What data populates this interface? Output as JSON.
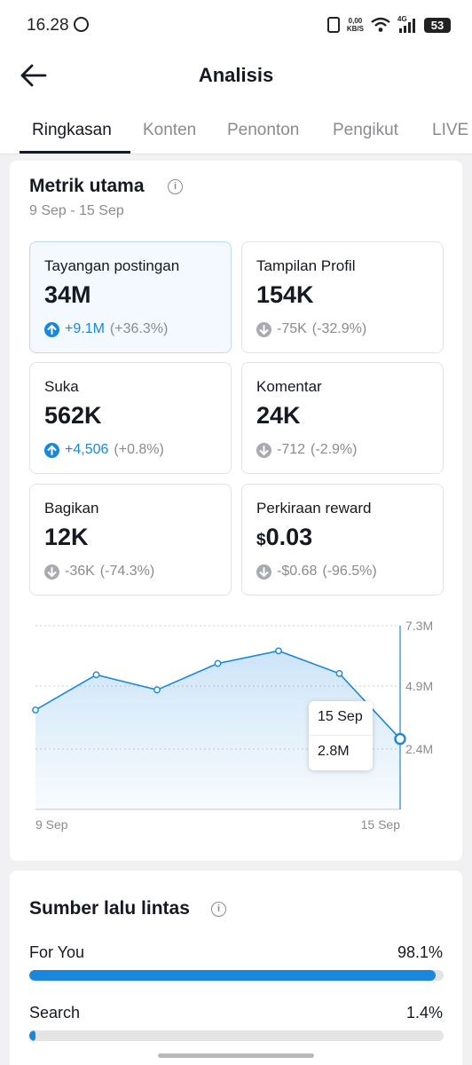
{
  "status_bar": {
    "time": "16.28",
    "net_speed_value": "0,00",
    "net_speed_unit": "KB/S",
    "network_type": "4G",
    "battery_level": "53"
  },
  "header": {
    "title": "Analisis",
    "back_icon": "arrow-left-icon"
  },
  "tabs": [
    {
      "label": "Ringkasan",
      "active": true
    },
    {
      "label": "Konten",
      "active": false
    },
    {
      "label": "Penonton",
      "active": false
    },
    {
      "label": "Pengikut",
      "active": false
    },
    {
      "label": "LIVE",
      "active": false
    }
  ],
  "key_metrics": {
    "title": "Metrik utama",
    "date_range": "9 Sep - 15 Sep",
    "items": [
      {
        "label": "Tayangan postingan",
        "value": "34M",
        "change": "+9.1M",
        "change_pct": "(+36.3%)",
        "direction": "up",
        "selected": true
      },
      {
        "label": "Tampilan Profil",
        "value": "154K",
        "change": "-75K",
        "change_pct": "(-32.9%)",
        "direction": "down",
        "selected": false
      },
      {
        "label": "Suka",
        "value": "562K",
        "change": "+4,506",
        "change_pct": "(+0.8%)",
        "direction": "up",
        "selected": false
      },
      {
        "label": "Komentar",
        "value": "24K",
        "change": "-712",
        "change_pct": "(-2.9%)",
        "direction": "down",
        "selected": false
      },
      {
        "label": "Bagikan",
        "value": "12K",
        "change": "-36K",
        "change_pct": "(-74.3%)",
        "direction": "down",
        "selected": false
      },
      {
        "label": "Perkiraan reward",
        "currency": "$",
        "value": "0.03",
        "change": "-$0.68",
        "change_pct": "(-96.5%)",
        "direction": "down",
        "selected": false
      }
    ]
  },
  "chart_data": {
    "type": "area",
    "x": [
      "9 Sep",
      "10 Sep",
      "11 Sep",
      "12 Sep",
      "13 Sep",
      "14 Sep",
      "15 Sep"
    ],
    "values": [
      3.95,
      5.35,
      4.75,
      5.8,
      6.3,
      5.4,
      2.8
    ],
    "y_ticks": [
      "7.3M",
      "4.9M",
      "2.4M"
    ],
    "y_tick_values": [
      7.3,
      4.9,
      2.4
    ],
    "x_tick_labels": [
      "9 Sep",
      "15 Sep"
    ],
    "ylim": [
      0,
      7.3
    ],
    "grid": true,
    "color": "#1b87dc",
    "tooltip": {
      "date": "15 Sep",
      "value": "2.8M"
    }
  },
  "traffic_sources": {
    "title": "Sumber lalu lintas",
    "items": [
      {
        "label": "For You",
        "percent": "98.1%",
        "fraction": 0.981
      },
      {
        "label": "Search",
        "percent": "1.4%",
        "fraction": 0.014
      }
    ]
  }
}
